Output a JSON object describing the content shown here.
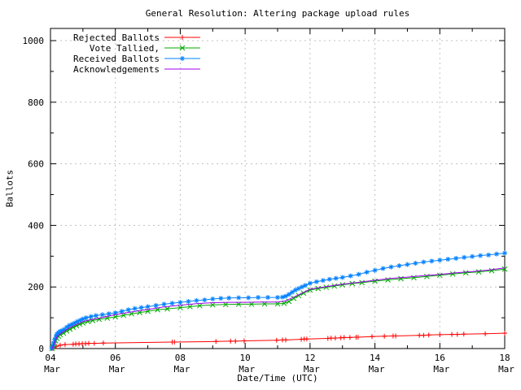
{
  "chart_data": {
    "type": "line",
    "title": "General Resolution: Altering package upload rules",
    "xlabel": "Date/Time (UTC)",
    "ylabel": "Ballots",
    "xlim": [
      4,
      18
    ],
    "ylim": [
      0,
      1000
    ],
    "grid": "on",
    "legend_position": "top-left",
    "colors": {
      "background": "#ffffff",
      "axis": "#000000",
      "grid": "#c0c0c0"
    },
    "x_major_ticks": [
      {
        "day": 4,
        "label": "04",
        "sub": "Mar"
      },
      {
        "day": 6,
        "label": "06",
        "sub": "Mar"
      },
      {
        "day": 8,
        "label": "08",
        "sub": "Mar"
      },
      {
        "day": 10,
        "label": "10",
        "sub": "Mar"
      },
      {
        "day": 12,
        "label": "12",
        "sub": "Mar"
      },
      {
        "day": 14,
        "label": "14",
        "sub": "Mar"
      },
      {
        "day": 16,
        "label": "16",
        "sub": "Mar"
      }
    ],
    "x_last_tick": {
      "day": 18,
      "label": "18",
      "sub": "Mar"
    },
    "x_minor_ticks": [
      5,
      7,
      9,
      11,
      13,
      15,
      17
    ],
    "y_major_ticks": [
      0,
      200,
      400,
      600,
      800,
      1000
    ],
    "y_minor_ticks": [
      100,
      300,
      500,
      700,
      900
    ],
    "series": [
      {
        "id": "rejected-ballots",
        "label": "Rejected Ballots",
        "color": "#ff0000",
        "marker": "plus",
        "points": [
          [
            4.05,
            0
          ],
          [
            4.1,
            3
          ],
          [
            4.18,
            7
          ],
          [
            4.3,
            11
          ],
          [
            4.45,
            13
          ],
          [
            4.7,
            14
          ],
          [
            4.78,
            15
          ],
          [
            4.88,
            15
          ],
          [
            4.98,
            16
          ],
          [
            5.08,
            16
          ],
          [
            5.18,
            17
          ],
          [
            5.35,
            17
          ],
          [
            5.63,
            18
          ],
          [
            7.75,
            21
          ],
          [
            7.82,
            21
          ],
          [
            9.1,
            23
          ],
          [
            9.55,
            24
          ],
          [
            9.7,
            24
          ],
          [
            9.97,
            25
          ],
          [
            10.97,
            27
          ],
          [
            11.15,
            28
          ],
          [
            11.25,
            28
          ],
          [
            11.73,
            30
          ],
          [
            11.82,
            31
          ],
          [
            11.9,
            31
          ],
          [
            12.55,
            33
          ],
          [
            12.65,
            34
          ],
          [
            12.78,
            34
          ],
          [
            12.95,
            35
          ],
          [
            13.05,
            36
          ],
          [
            13.23,
            36
          ],
          [
            13.42,
            37
          ],
          [
            13.48,
            37
          ],
          [
            13.91,
            39
          ],
          [
            14.29,
            40
          ],
          [
            14.56,
            41
          ],
          [
            14.64,
            41
          ],
          [
            15.37,
            43
          ],
          [
            15.5,
            43
          ],
          [
            15.66,
            44
          ],
          [
            16.0,
            45
          ],
          [
            16.37,
            46
          ],
          [
            16.54,
            46
          ],
          [
            16.74,
            47
          ],
          [
            17.4,
            48
          ],
          [
            18.0,
            50
          ]
        ]
      },
      {
        "id": "vote-tallied",
        "label": "Vote Tallied,",
        "color": "#00a800",
        "marker": "cross",
        "points": [
          [
            4.05,
            0
          ],
          [
            4.08,
            6
          ],
          [
            4.12,
            15
          ],
          [
            4.16,
            25
          ],
          [
            4.2,
            33
          ],
          [
            4.25,
            40
          ],
          [
            4.3,
            45
          ],
          [
            4.4,
            50
          ],
          [
            4.5,
            57
          ],
          [
            4.6,
            63
          ],
          [
            4.7,
            69
          ],
          [
            4.8,
            74
          ],
          [
            4.9,
            79
          ],
          [
            5.0,
            83
          ],
          [
            5.15,
            88
          ],
          [
            5.3,
            91
          ],
          [
            5.5,
            95
          ],
          [
            5.75,
            99
          ],
          [
            6.0,
            103
          ],
          [
            6.25,
            108
          ],
          [
            6.5,
            113
          ],
          [
            6.75,
            117
          ],
          [
            7.0,
            121
          ],
          [
            7.3,
            126
          ],
          [
            7.6,
            129
          ],
          [
            8.0,
            133
          ],
          [
            8.3,
            136
          ],
          [
            8.6,
            139
          ],
          [
            9.0,
            142
          ],
          [
            9.4,
            143
          ],
          [
            9.8,
            144
          ],
          [
            10.2,
            144
          ],
          [
            10.6,
            145
          ],
          [
            11.0,
            145
          ],
          [
            11.2,
            147
          ],
          [
            11.35,
            153
          ],
          [
            11.5,
            163
          ],
          [
            11.65,
            172
          ],
          [
            11.8,
            180
          ],
          [
            12.0,
            190
          ],
          [
            12.25,
            195
          ],
          [
            12.5,
            199
          ],
          [
            12.75,
            203
          ],
          [
            13.0,
            207
          ],
          [
            13.3,
            211
          ],
          [
            13.6,
            214
          ],
          [
            14.0,
            219
          ],
          [
            14.4,
            223
          ],
          [
            14.8,
            227
          ],
          [
            15.2,
            230
          ],
          [
            15.6,
            234
          ],
          [
            16.0,
            238
          ],
          [
            16.4,
            242
          ],
          [
            16.8,
            246
          ],
          [
            17.2,
            249
          ],
          [
            17.6,
            253
          ],
          [
            18.0,
            258
          ]
        ]
      },
      {
        "id": "received-ballots",
        "label": "Received Ballots",
        "color": "#0080ff",
        "marker": "asterisk",
        "points": [
          [
            4.04,
            0
          ],
          [
            4.07,
            8
          ],
          [
            4.1,
            18
          ],
          [
            4.13,
            30
          ],
          [
            4.17,
            40
          ],
          [
            4.2,
            47
          ],
          [
            4.25,
            52
          ],
          [
            4.3,
            56
          ],
          [
            4.35,
            58
          ],
          [
            4.42,
            62
          ],
          [
            4.5,
            69
          ],
          [
            4.58,
            75
          ],
          [
            4.67,
            79
          ],
          [
            4.75,
            83
          ],
          [
            4.83,
            88
          ],
          [
            4.92,
            92
          ],
          [
            5.0,
            96
          ],
          [
            5.1,
            100
          ],
          [
            5.25,
            104
          ],
          [
            5.4,
            107
          ],
          [
            5.6,
            110
          ],
          [
            5.8,
            113
          ],
          [
            6.0,
            116
          ],
          [
            6.2,
            121
          ],
          [
            6.4,
            126
          ],
          [
            6.6,
            130
          ],
          [
            6.8,
            133
          ],
          [
            7.0,
            136
          ],
          [
            7.25,
            140
          ],
          [
            7.5,
            144
          ],
          [
            7.75,
            147
          ],
          [
            8.0,
            150
          ],
          [
            8.25,
            153
          ],
          [
            8.5,
            156
          ],
          [
            8.75,
            158
          ],
          [
            9.0,
            161
          ],
          [
            9.25,
            163
          ],
          [
            9.5,
            164
          ],
          [
            9.8,
            165
          ],
          [
            10.1,
            165
          ],
          [
            10.4,
            166
          ],
          [
            10.7,
            166
          ],
          [
            11.0,
            166
          ],
          [
            11.15,
            167
          ],
          [
            11.25,
            170
          ],
          [
            11.35,
            176
          ],
          [
            11.45,
            183
          ],
          [
            11.55,
            190
          ],
          [
            11.65,
            195
          ],
          [
            11.75,
            200
          ],
          [
            11.85,
            205
          ],
          [
            12.0,
            212
          ],
          [
            12.2,
            217
          ],
          [
            12.4,
            221
          ],
          [
            12.6,
            225
          ],
          [
            12.8,
            228
          ],
          [
            13.0,
            231
          ],
          [
            13.25,
            236
          ],
          [
            13.5,
            241
          ],
          [
            13.75,
            248
          ],
          [
            14.0,
            254
          ],
          [
            14.25,
            260
          ],
          [
            14.5,
            265
          ],
          [
            14.75,
            269
          ],
          [
            15.0,
            273
          ],
          [
            15.25,
            277
          ],
          [
            15.5,
            281
          ],
          [
            15.75,
            284
          ],
          [
            16.0,
            287
          ],
          [
            16.25,
            290
          ],
          [
            16.5,
            293
          ],
          [
            16.75,
            296
          ],
          [
            17.0,
            299
          ],
          [
            17.25,
            302
          ],
          [
            17.5,
            304
          ],
          [
            17.75,
            307
          ],
          [
            18.0,
            310
          ]
        ]
      },
      {
        "id": "acknowledgements",
        "label": "Acknowledgements",
        "color": "#a000f0",
        "marker": "none",
        "points": [
          [
            4.05,
            0
          ],
          [
            4.12,
            18
          ],
          [
            4.2,
            38
          ],
          [
            4.3,
            48
          ],
          [
            4.45,
            58
          ],
          [
            4.6,
            68
          ],
          [
            4.8,
            78
          ],
          [
            5.0,
            88
          ],
          [
            5.3,
            95
          ],
          [
            5.6,
            101
          ],
          [
            6.0,
            110
          ],
          [
            6.5,
            119
          ],
          [
            7.0,
            127
          ],
          [
            7.5,
            135
          ],
          [
            8.0,
            141
          ],
          [
            8.5,
            146
          ],
          [
            9.0,
            149
          ],
          [
            9.5,
            150
          ],
          [
            10.0,
            150
          ],
          [
            10.5,
            151
          ],
          [
            11.0,
            151
          ],
          [
            11.25,
            155
          ],
          [
            11.5,
            167
          ],
          [
            11.75,
            180
          ],
          [
            12.0,
            193
          ],
          [
            12.3,
            198
          ],
          [
            12.6,
            203
          ],
          [
            13.0,
            209
          ],
          [
            13.5,
            215
          ],
          [
            14.0,
            222
          ],
          [
            14.5,
            228
          ],
          [
            15.0,
            232
          ],
          [
            15.5,
            237
          ],
          [
            16.0,
            241
          ],
          [
            16.5,
            246
          ],
          [
            17.0,
            250
          ],
          [
            17.5,
            255
          ],
          [
            18.0,
            262
          ]
        ]
      }
    ]
  }
}
